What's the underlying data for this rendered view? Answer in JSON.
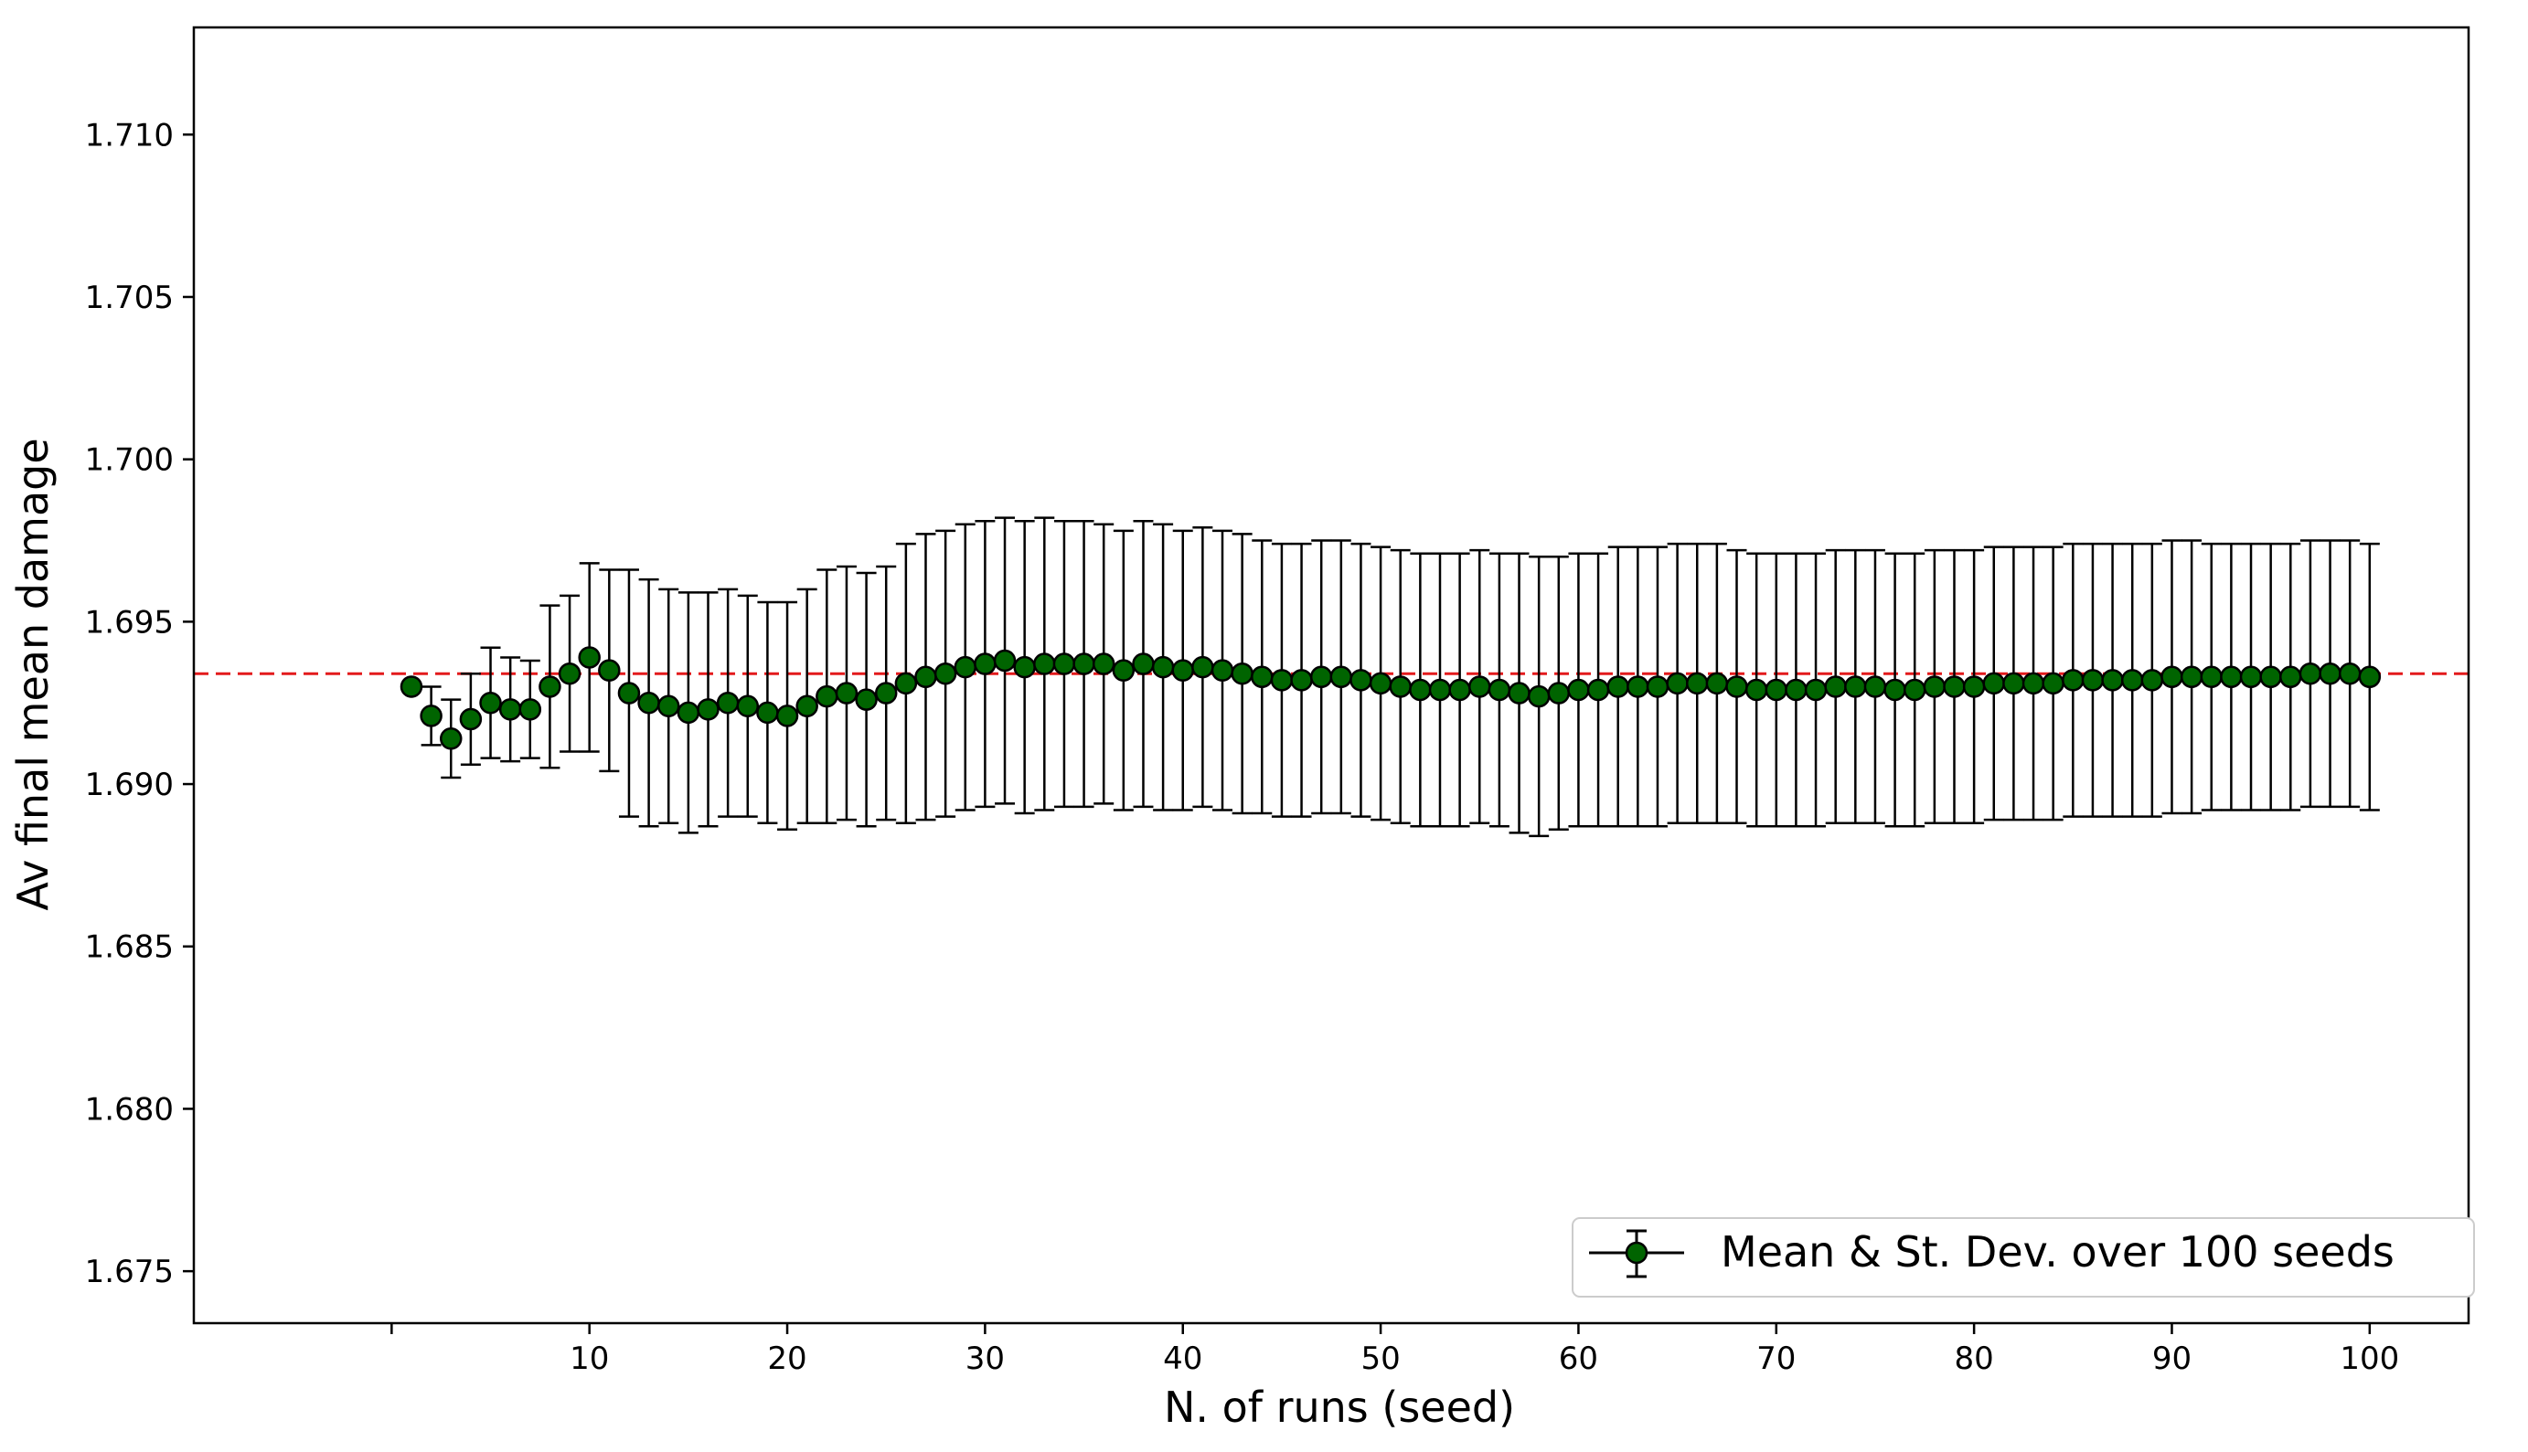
{
  "chart_data": {
    "type": "line",
    "title": "",
    "xlabel": "N. of runs (seed)",
    "ylabel": "Av final mean damage",
    "xlim": [
      -10,
      105
    ],
    "ylim": [
      1.6734,
      1.7133
    ],
    "xticks": [
      0,
      10,
      20,
      30,
      40,
      50,
      60,
      70,
      80,
      90,
      100
    ],
    "xtick_labels": [
      "",
      "10",
      "20",
      "30",
      "40",
      "50",
      "60",
      "70",
      "80",
      "90",
      "100"
    ],
    "yticks": [
      1.675,
      1.68,
      1.685,
      1.69,
      1.695,
      1.7,
      1.705,
      1.71
    ],
    "ytick_labels": [
      "1.675",
      "1.680",
      "1.685",
      "1.690",
      "1.695",
      "1.700",
      "1.705",
      "1.710"
    ],
    "grid": false,
    "legend_position": "lower-right",
    "reference_line": {
      "y": 1.6934,
      "color": "#e31a1c",
      "style": "dashed"
    },
    "marker_color": "#006400",
    "errorbar_color": "#000000",
    "series": [
      {
        "name": "Mean & St. Dev. over 100 seeds",
        "x": [
          1,
          2,
          3,
          4,
          5,
          6,
          7,
          8,
          9,
          10,
          11,
          12,
          13,
          14,
          15,
          16,
          17,
          18,
          19,
          20,
          21,
          22,
          23,
          24,
          25,
          26,
          27,
          28,
          29,
          30,
          31,
          32,
          33,
          34,
          35,
          36,
          37,
          38,
          39,
          40,
          41,
          42,
          43,
          44,
          45,
          46,
          47,
          48,
          49,
          50,
          51,
          52,
          53,
          54,
          55,
          56,
          57,
          58,
          59,
          60,
          61,
          62,
          63,
          64,
          65,
          66,
          67,
          68,
          69,
          70,
          71,
          72,
          73,
          74,
          75,
          76,
          77,
          78,
          79,
          80,
          81,
          82,
          83,
          84,
          85,
          86,
          87,
          88,
          89,
          90,
          91,
          92,
          93,
          94,
          95,
          96,
          97,
          98,
          99,
          100
        ],
        "y": [
          1.693,
          1.6921,
          1.6914,
          1.692,
          1.6925,
          1.6923,
          1.6923,
          1.693,
          1.6934,
          1.6939,
          1.6935,
          1.6928,
          1.6925,
          1.6924,
          1.6922,
          1.6923,
          1.6925,
          1.6924,
          1.6922,
          1.6921,
          1.6924,
          1.6927,
          1.6928,
          1.6926,
          1.6928,
          1.6931,
          1.6933,
          1.6934,
          1.6936,
          1.6937,
          1.6938,
          1.6936,
          1.6937,
          1.6937,
          1.6937,
          1.6937,
          1.6935,
          1.6937,
          1.6936,
          1.6935,
          1.6936,
          1.6935,
          1.6934,
          1.6933,
          1.6932,
          1.6932,
          1.6933,
          1.6933,
          1.6932,
          1.6931,
          1.693,
          1.6929,
          1.6929,
          1.6929,
          1.693,
          1.6929,
          1.6928,
          1.6927,
          1.6928,
          1.6929,
          1.6929,
          1.693,
          1.693,
          1.693,
          1.6931,
          1.6931,
          1.6931,
          1.693,
          1.6929,
          1.6929,
          1.6929,
          1.6929,
          1.693,
          1.693,
          1.693,
          1.6929,
          1.6929,
          1.693,
          1.693,
          1.693,
          1.6931,
          1.6931,
          1.6931,
          1.6931,
          1.6932,
          1.6932,
          1.6932,
          1.6932,
          1.6932,
          1.6933,
          1.6933,
          1.6933,
          1.6933,
          1.6933,
          1.6933,
          1.6933,
          1.6934,
          1.6934,
          1.6934,
          1.6933
        ],
        "err": [
          0.0,
          0.0009,
          0.0012,
          0.0014,
          0.0017,
          0.0016,
          0.0015,
          0.0025,
          0.0024,
          0.0029,
          0.0031,
          0.0038,
          0.0038,
          0.0036,
          0.0037,
          0.0036,
          0.0035,
          0.0034,
          0.0034,
          0.0035,
          0.0036,
          0.0039,
          0.0039,
          0.0039,
          0.0039,
          0.0043,
          0.0044,
          0.0044,
          0.0044,
          0.0044,
          0.0044,
          0.0045,
          0.0045,
          0.0044,
          0.0044,
          0.0043,
          0.0043,
          0.0044,
          0.0044,
          0.0043,
          0.0043,
          0.0043,
          0.0043,
          0.0042,
          0.0042,
          0.0042,
          0.0042,
          0.0042,
          0.0042,
          0.0042,
          0.0042,
          0.0042,
          0.0042,
          0.0042,
          0.0042,
          0.0042,
          0.0043,
          0.0043,
          0.0042,
          0.0042,
          0.0042,
          0.0043,
          0.0043,
          0.0043,
          0.0043,
          0.0043,
          0.0043,
          0.0042,
          0.0042,
          0.0042,
          0.0042,
          0.0042,
          0.0042,
          0.0042,
          0.0042,
          0.0042,
          0.0042,
          0.0042,
          0.0042,
          0.0042,
          0.0042,
          0.0042,
          0.0042,
          0.0042,
          0.0042,
          0.0042,
          0.0042,
          0.0042,
          0.0042,
          0.0042,
          0.0042,
          0.0041,
          0.0041,
          0.0041,
          0.0041,
          0.0041,
          0.0041,
          0.0041,
          0.0041,
          0.0041
        ]
      }
    ]
  }
}
